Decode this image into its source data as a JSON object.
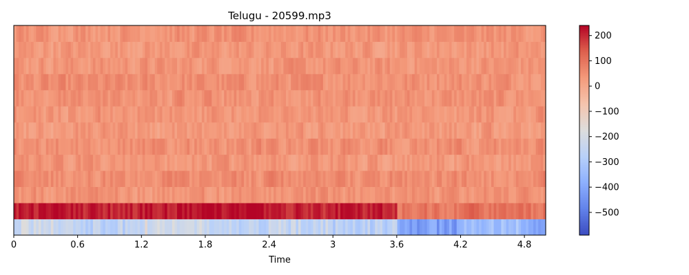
{
  "chart_data": {
    "type": "heatmap",
    "title": "Telugu - 20599.mp3",
    "xlabel": "Time",
    "ylabel": "",
    "xlim": [
      0,
      5.0
    ],
    "x_ticks": [
      0,
      0.6,
      1.2,
      1.8,
      2.4,
      3,
      3.6,
      4.2,
      4.8
    ],
    "x_tick_labels": [
      "0",
      "0.6",
      "1.2",
      "1.8",
      "2.4",
      "3",
      "3.6",
      "4.2",
      "4.8"
    ],
    "n_rows": 13,
    "colormap": "coolwarm",
    "colorbar": {
      "vmin": -590,
      "vmax": 240,
      "ticks": [
        200,
        100,
        0,
        -100,
        -200,
        -300,
        -400,
        -500
      ],
      "tick_labels": [
        "200",
        "100",
        "0",
        "−100",
        "−200",
        "−300",
        "−400",
        "−500"
      ]
    },
    "row_means": [
      -270,
      205,
      45,
      55,
      35,
      50,
      30,
      40,
      45,
      50,
      40,
      35,
      45
    ],
    "row_order": "bottom-to-top",
    "time_segments": [
      {
        "t": 0.0,
        "row0": -220,
        "row1": 215
      },
      {
        "t": 0.6,
        "row0": -260,
        "row1": 205
      },
      {
        "t": 1.2,
        "row0": -200,
        "row1": 220
      },
      {
        "t": 1.8,
        "row0": -250,
        "row1": 230
      },
      {
        "t": 2.4,
        "row0": -240,
        "row1": 200
      },
      {
        "t": 3.0,
        "row0": -270,
        "row1": 210
      },
      {
        "t": 3.6,
        "row0": -420,
        "row1": 95
      },
      {
        "t": 4.2,
        "row0": -330,
        "row1": 110
      },
      {
        "t": 4.8,
        "row0": -380,
        "row1": 100
      }
    ]
  }
}
